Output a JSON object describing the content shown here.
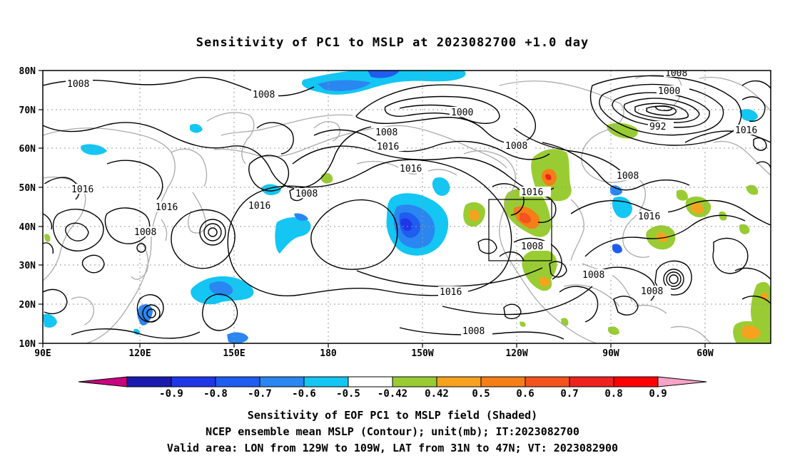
{
  "title": "Sensitivity of PC1 to MSLP at 2023082700 +1.0 day",
  "x_ticks": [
    "90E",
    "120E",
    "150E",
    "180",
    "150W",
    "120W",
    "90W",
    "60W"
  ],
  "y_ticks": [
    "80N",
    "70N",
    "60N",
    "50N",
    "40N",
    "30N",
    "20N",
    "10N"
  ],
  "colorbar": {
    "colors": [
      "#c9007f",
      "#1a1aaf",
      "#1f36e8",
      "#1f5cf0",
      "#2a86f0",
      "#13c6f3",
      "#ffffff",
      "#99cc33",
      "#f7a21f",
      "#f67e17",
      "#f4531e",
      "#ee2320",
      "#ff0000",
      "#f9a3c8"
    ],
    "labels": [
      "-0.9",
      "-0.8",
      "-0.7",
      "-0.6",
      "-0.5",
      "-0.42",
      "0.42",
      "0.5",
      "0.6",
      "0.7",
      "0.8",
      "0.9"
    ]
  },
  "contour_labels": [
    "1008",
    "1008",
    "1008",
    "1000",
    "1008",
    "1016",
    "1016",
    "1008",
    "1016",
    "1016",
    "1016",
    "1016",
    "1008",
    "1008",
    "1008",
    "1000",
    "992",
    "1016",
    "1008",
    "1016",
    "1008",
    "1008",
    "1008",
    "1016",
    "1008"
  ],
  "captions": {
    "line1": "Sensitivity of EOF PC1 to MSLP field (Shaded)",
    "line2": "NCEP ensemble mean MSLP (Contour); unit(mb); IT:2023082700",
    "line3": "Valid area: LON from 129W to 109W, LAT from 31N to 47N; VT: 2023082900"
  },
  "colors": {
    "coast": "#aaaaaa",
    "grid": "#999999",
    "contour": "#000000",
    "positive": "#99cc33",
    "negative": "#13c6f3"
  }
}
